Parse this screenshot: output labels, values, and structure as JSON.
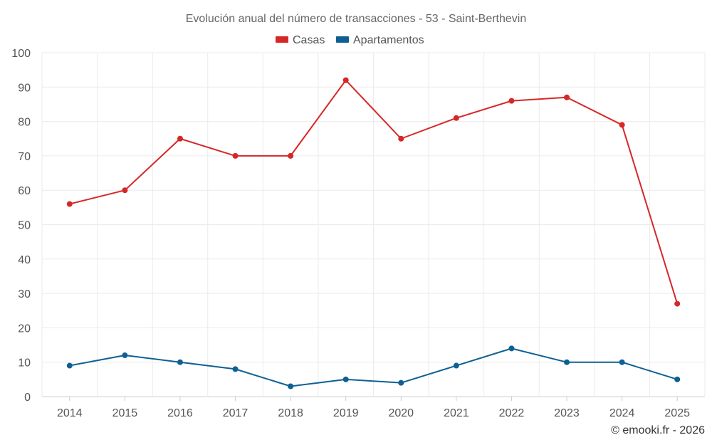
{
  "chart_data": {
    "type": "line",
    "title": "Evolución anual del número de transacciones - 53 - Saint-Berthevin",
    "xlabel": "",
    "ylabel": "",
    "categories": [
      "2014",
      "2015",
      "2016",
      "2017",
      "2018",
      "2019",
      "2020",
      "2021",
      "2022",
      "2023",
      "2024",
      "2025"
    ],
    "ylim": [
      0,
      100
    ],
    "yticks": [
      0,
      10,
      20,
      30,
      40,
      50,
      60,
      70,
      80,
      90,
      100
    ],
    "grid": true,
    "legend_position": "top-center",
    "series": [
      {
        "name": "Casas",
        "color": "#d62728",
        "values": [
          56,
          60,
          75,
          70,
          70,
          92,
          75,
          81,
          86,
          87,
          79,
          27
        ]
      },
      {
        "name": "Apartamentos",
        "color": "#0e6094",
        "values": [
          9,
          12,
          10,
          8,
          3,
          5,
          4,
          9,
          14,
          10,
          10,
          5
        ]
      }
    ],
    "credit": "© emooki.fr - 2026"
  }
}
